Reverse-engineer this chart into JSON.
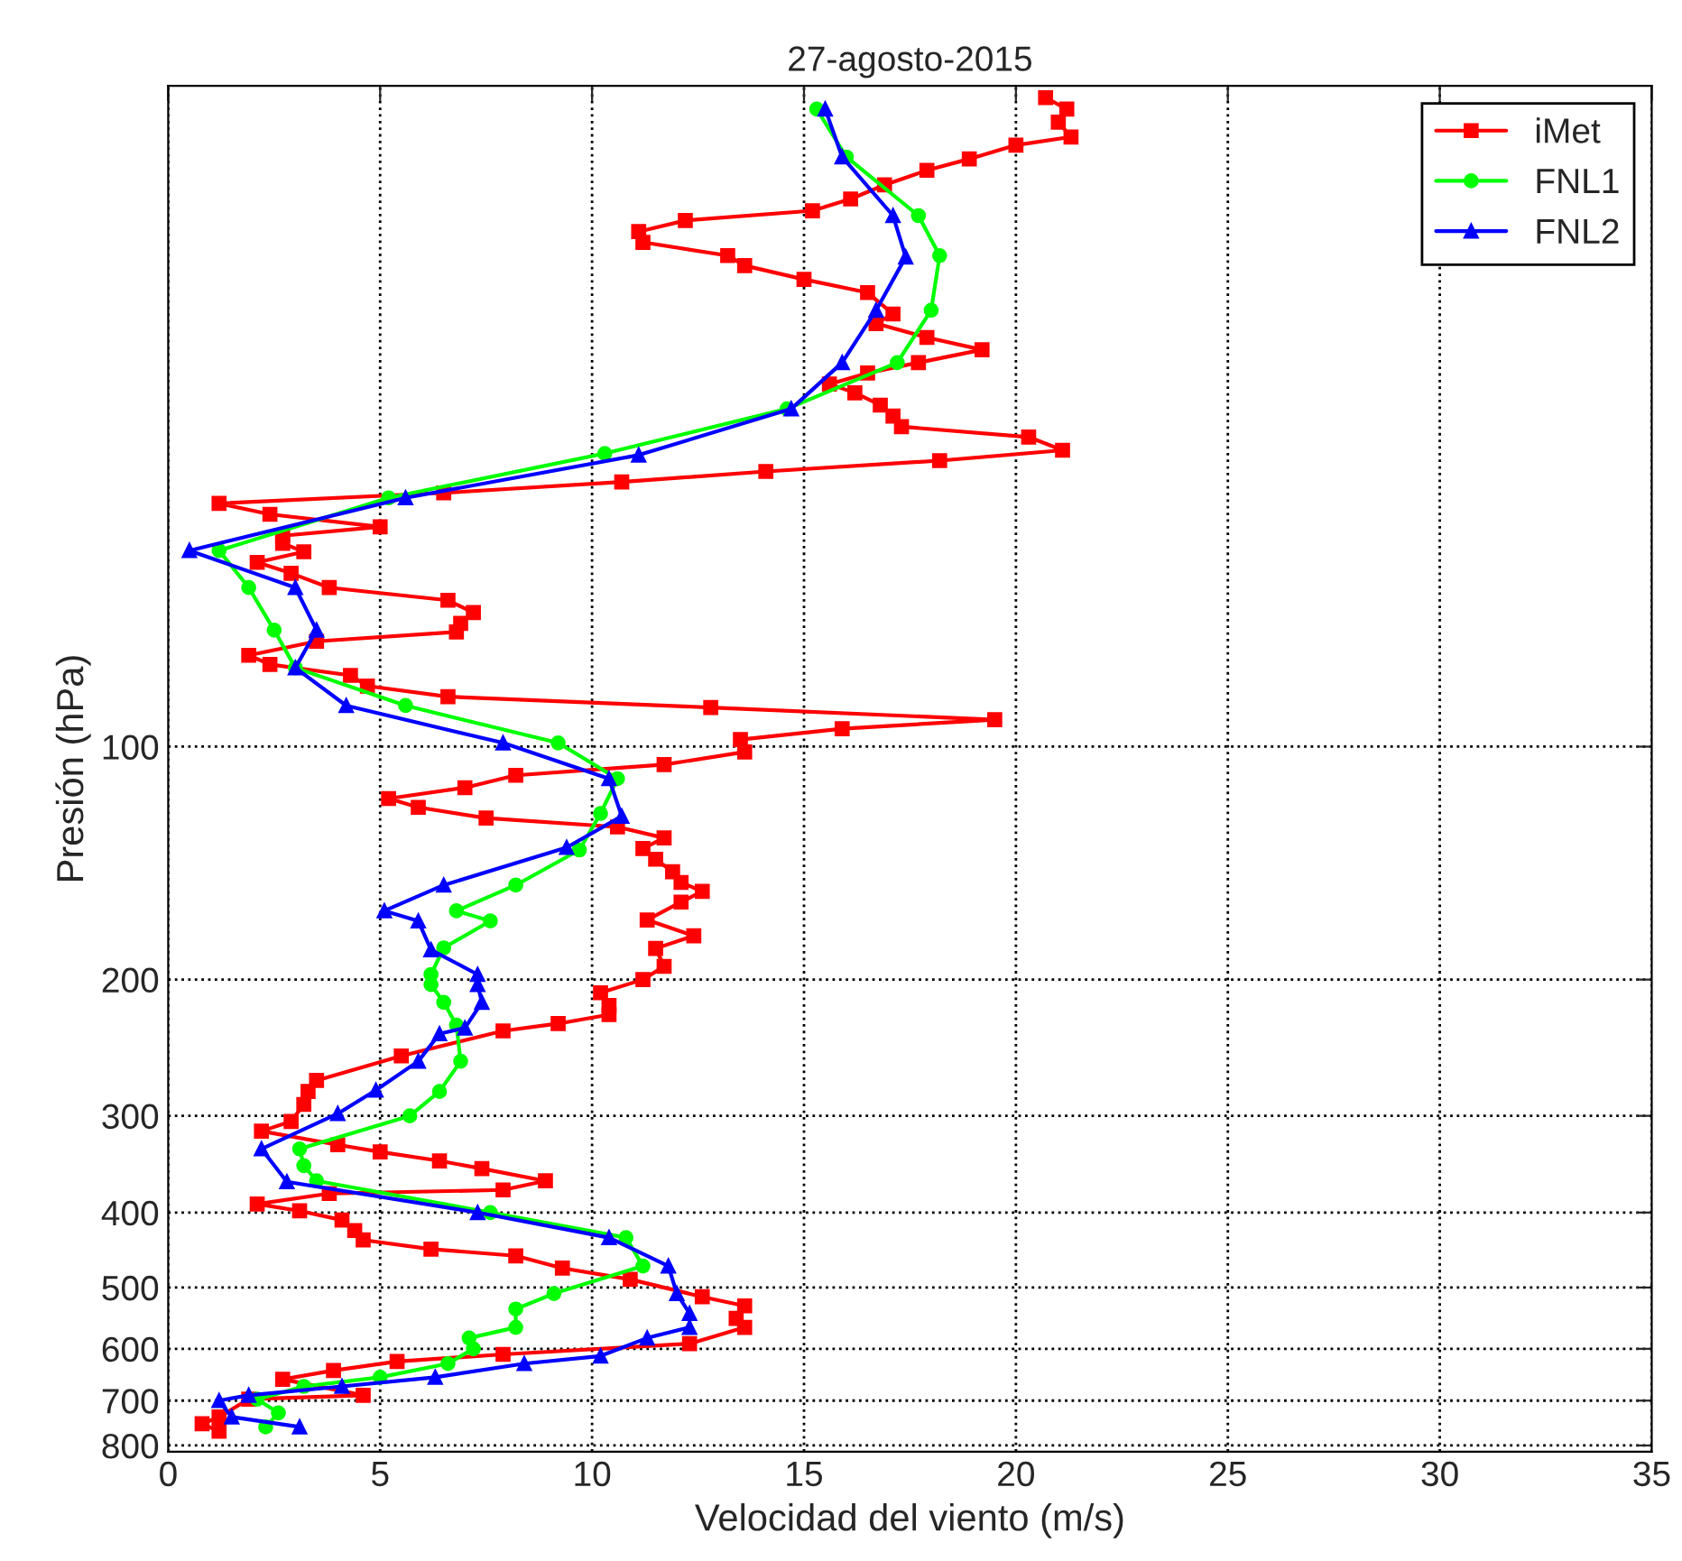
{
  "chart_data": {
    "type": "line",
    "title": "27-agosto-2015",
    "xlabel": "Velocidad del viento (m/s)",
    "ylabel": "Presión (hPa)",
    "xlim": [
      0,
      35
    ],
    "xticks": [
      0,
      5,
      10,
      15,
      20,
      25,
      30,
      35
    ],
    "ylim": [
      815,
      14
    ],
    "yticks": [
      100,
      200,
      300,
      400,
      500,
      600,
      700,
      800
    ],
    "log": "y",
    "grid": true,
    "legend": "top right",
    "line_style": "solid",
    "series": [
      {
        "name": "iMet",
        "color": "#ff0000",
        "marker": "square",
        "x": [
          20.7,
          21.2,
          21.0,
          21.3,
          20.0,
          18.9,
          17.9,
          16.9,
          16.1,
          15.2,
          12.2,
          11.1,
          11.2,
          13.2,
          13.6,
          15.0,
          16.5,
          17.1,
          16.7,
          17.9,
          19.2,
          17.7,
          16.5,
          15.6,
          16.2,
          16.8,
          17.1,
          17.3,
          20.3,
          21.1,
          18.2,
          14.1,
          10.7,
          6.5,
          1.2,
          2.4,
          5.0,
          2.7,
          2.7,
          3.2,
          2.1,
          2.9,
          3.8,
          6.6,
          7.2,
          6.9,
          6.8,
          3.5,
          1.9,
          2.4,
          4.3,
          4.7,
          6.6,
          12.8,
          19.5,
          15.9,
          13.5,
          13.6,
          11.7,
          8.2,
          7.0,
          5.2,
          5.9,
          7.5,
          10.6,
          11.7,
          11.2,
          11.5,
          11.9,
          12.1,
          12.6,
          12.1,
          11.3,
          12.4,
          11.5,
          11.7,
          11.2,
          10.2,
          10.4,
          10.4,
          9.2,
          7.9,
          5.5,
          3.5,
          3.3,
          3.2,
          2.9,
          2.2,
          4.0,
          5.0,
          6.4,
          7.4,
          8.9,
          7.9,
          3.8,
          2.1,
          3.1,
          4.1,
          4.4,
          4.6,
          6.2,
          8.2,
          9.3,
          10.9,
          12.6,
          13.6,
          13.4,
          13.6,
          12.3,
          7.9,
          5.4,
          3.9,
          2.7,
          4.6,
          1.9,
          1.2,
          0.8,
          1.2
        ],
        "values": [
          14.5,
          15.0,
          15.6,
          16.3,
          16.7,
          17.4,
          18.0,
          18.8,
          19.6,
          20.3,
          20.9,
          21.6,
          22.3,
          23.2,
          23.9,
          24.9,
          25.9,
          27.6,
          28.4,
          29.6,
          30.7,
          31.9,
          32.9,
          34.0,
          34.9,
          36.2,
          37.4,
          38.6,
          39.8,
          41.4,
          42.7,
          44.1,
          45.5,
          47.0,
          48.5,
          50.1,
          52.0,
          53.4,
          54.6,
          56.0,
          57.8,
          59.7,
          62.3,
          64.7,
          67.1,
          69.3,
          71.1,
          73.1,
          76.2,
          78.3,
          80.9,
          83.5,
          86.2,
          89.0,
          92.3,
          94.8,
          97.9,
          101.6,
          105.5,
          108.9,
          113,
          116.7,
          119.8,
          123.7,
          127,
          131.2,
          135.4,
          139.8,
          145.1,
          149.8,
          153.8,
          158.8,
          167.5,
          175.6,
          182.3,
          192.3,
          200,
          208,
          216,
          222,
          228,
          233,
          251,
          270,
          279,
          290,
          305,
          314,
          327,
          334,
          343,
          351,
          364,
          374,
          378,
          390,
          398,
          409,
          422,
          434,
          446,
          455,
          472,
          488,
          514,
          528,
          548,
          563,
          591,
          610,
          623,
          640,
          657,
          689,
          697,
          735,
          750,
          767
        ]
      },
      {
        "name": "FNL1",
        "color": "#00ff00",
        "marker": "circle",
        "x": [
          15.3,
          16.0,
          17.7,
          18.2,
          18.0,
          17.2,
          14.6,
          10.3,
          5.2,
          1.2,
          1.9,
          2.5,
          3.0,
          5.6,
          9.2,
          10.6,
          10.2,
          9.7,
          8.2,
          6.8,
          7.6,
          6.5,
          6.2,
          6.2,
          6.5,
          6.8,
          6.9,
          6.4,
          5.7,
          3.1,
          3.2,
          3.5,
          7.6,
          10.8,
          11.2,
          9.1,
          8.2,
          8.2,
          7.1,
          7.2,
          6.6,
          5.0,
          3.2,
          2.1,
          2.6,
          2.3
        ],
        "values": [
          15,
          17.3,
          20.6,
          23.2,
          27.3,
          31.9,
          36.6,
          41.8,
          47.7,
          55.8,
          62.3,
          70.7,
          79.1,
          88.5,
          98.9,
          110,
          122,
          136,
          151,
          163,
          168,
          182,
          197,
          203,
          214,
          229,
          255,
          279,
          300,
          331,
          348,
          364,
          400,
          431,
          469,
          509,
          533,
          563,
          581,
          600,
          627,
          653,
          671,
          697,
          726,
          757
        ]
      },
      {
        "name": "FNL2",
        "color": "#0000ff",
        "marker": "triangle",
        "x": [
          15.5,
          15.9,
          17.1,
          17.4,
          16.7,
          15.9,
          14.7,
          11.1,
          5.6,
          0.5,
          3.0,
          3.5,
          3.0,
          4.2,
          7.9,
          10.4,
          10.7,
          9.4,
          6.5,
          5.1,
          5.9,
          6.2,
          7.3,
          7.3,
          7.4,
          7.0,
          6.4,
          5.9,
          4.9,
          4.0,
          2.2,
          2.8,
          7.3,
          10.4,
          11.8,
          12.0,
          12.3,
          12.3,
          11.3,
          10.2,
          8.4,
          6.3,
          4.1,
          1.9,
          1.2,
          1.5,
          3.1
        ],
        "values": [
          15,
          17.3,
          20.6,
          23.3,
          27.3,
          31.9,
          36.6,
          42,
          47.7,
          55.8,
          62.3,
          70.7,
          79.1,
          88.5,
          98.9,
          110,
          123,
          135,
          151,
          163,
          168,
          183,
          197,
          203,
          214,
          231,
          235,
          255,
          278,
          298,
          331,
          365,
          400,
          431,
          469,
          509,
          540,
          563,
          581,
          613,
          627,
          653,
          671,
          689,
          700,
          735,
          757
        ]
      }
    ]
  }
}
